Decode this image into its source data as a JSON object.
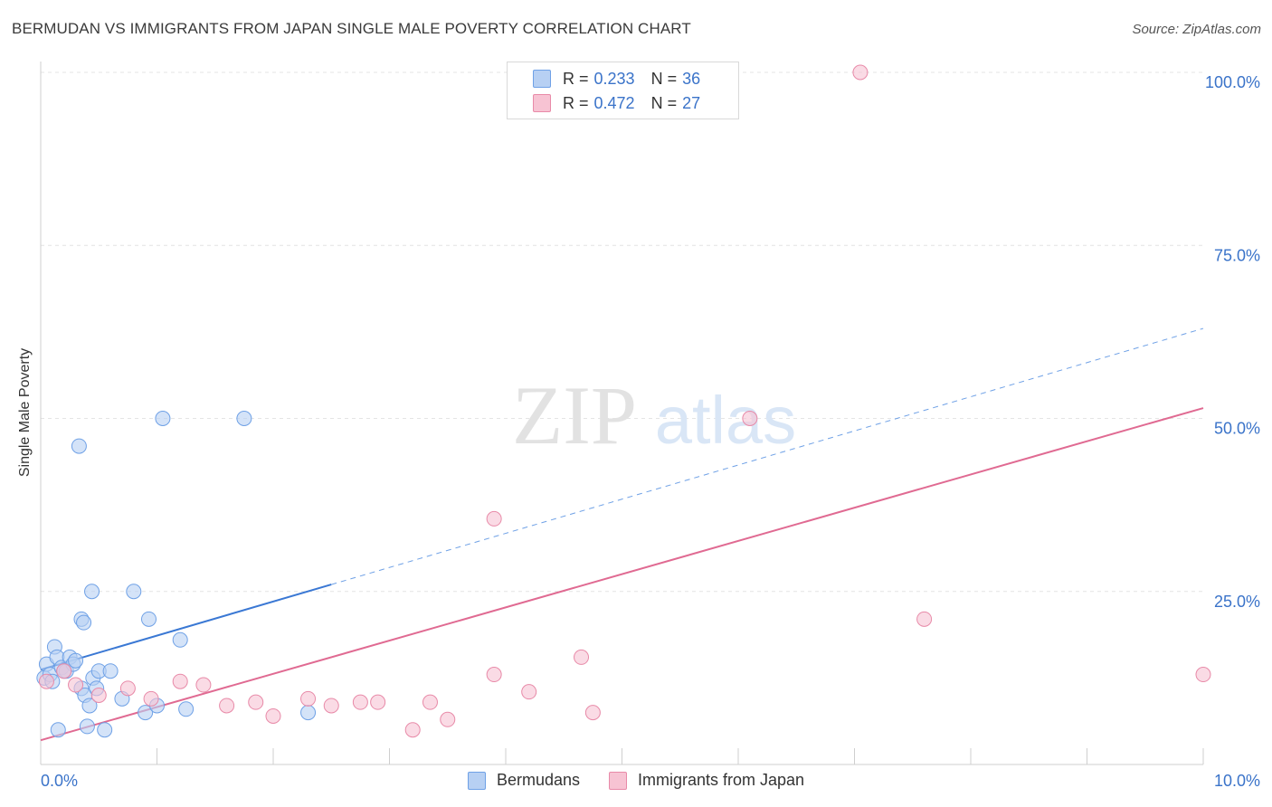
{
  "title": "BERMUDAN VS IMMIGRANTS FROM JAPAN SINGLE MALE POVERTY CORRELATION CHART",
  "source": "Source: ZipAtlas.com",
  "watermark": {
    "zip": "ZIP",
    "atlas": "atlas"
  },
  "legend": {
    "r_label": "R =",
    "n_label": "N =",
    "rows": [
      {
        "r": "0.233",
        "n": "36"
      },
      {
        "r": "0.472",
        "n": "27"
      }
    ]
  },
  "chart_data": {
    "type": "scatter",
    "ylabel": "Single Male Poverty",
    "xlim": [
      0,
      10
    ],
    "ylim": [
      0,
      100
    ],
    "x_tick_labels": [
      "0.0%",
      "10.0%"
    ],
    "y_tick_labels": [
      "100.0%",
      "75.0%",
      "50.0%",
      "25.0%"
    ],
    "y_tick_values": [
      100,
      75,
      50,
      25
    ],
    "series": [
      {
        "name": "Bermudans",
        "color": "#6fa1e6",
        "fill": "#b7d0f3",
        "points": [
          [
            0.03,
            12.5
          ],
          [
            0.05,
            14.5
          ],
          [
            0.08,
            13.0
          ],
          [
            0.12,
            17.0
          ],
          [
            0.14,
            15.5
          ],
          [
            0.18,
            14.0
          ],
          [
            0.22,
            13.5
          ],
          [
            0.25,
            15.5
          ],
          [
            0.28,
            14.5
          ],
          [
            0.3,
            15.0
          ],
          [
            0.35,
            11.0
          ],
          [
            0.38,
            10.0
          ],
          [
            0.4,
            5.5
          ],
          [
            0.33,
            46.0
          ],
          [
            0.35,
            21.0
          ],
          [
            0.37,
            20.5
          ],
          [
            0.42,
            8.5
          ],
          [
            0.45,
            12.5
          ],
          [
            0.44,
            25.0
          ],
          [
            0.48,
            11.0
          ],
          [
            0.5,
            13.5
          ],
          [
            0.6,
            13.5
          ],
          [
            0.7,
            9.5
          ],
          [
            0.8,
            25.0
          ],
          [
            0.93,
            21.0
          ],
          [
            0.9,
            7.5
          ],
          [
            1.0,
            8.5
          ],
          [
            1.05,
            50.0
          ],
          [
            1.2,
            18.0
          ],
          [
            1.25,
            8.0
          ],
          [
            1.75,
            50.0
          ],
          [
            2.3,
            7.5
          ],
          [
            0.55,
            5.0
          ],
          [
            0.15,
            5.0
          ],
          [
            0.2,
            13.5
          ],
          [
            0.1,
            12.0
          ]
        ],
        "trend": {
          "x": [
            0.0,
            2.5
          ],
          "y": [
            13.7,
            26.0
          ]
        },
        "trend_dashed": {
          "x": [
            2.5,
            10.0
          ],
          "y": [
            26.0,
            63.0
          ]
        }
      },
      {
        "name": "Immigrants from Japan",
        "color": "#e88aa8",
        "fill": "#f7c3d3",
        "points": [
          [
            0.05,
            12.0
          ],
          [
            0.2,
            13.5
          ],
          [
            0.3,
            11.5
          ],
          [
            0.5,
            10.0
          ],
          [
            0.75,
            11.0
          ],
          [
            0.95,
            9.5
          ],
          [
            1.2,
            12.0
          ],
          [
            1.4,
            11.5
          ],
          [
            1.6,
            8.5
          ],
          [
            1.85,
            9.0
          ],
          [
            2.0,
            7.0
          ],
          [
            2.3,
            9.5
          ],
          [
            2.5,
            8.5
          ],
          [
            2.75,
            9.0
          ],
          [
            2.9,
            9.0
          ],
          [
            3.2,
            5.0
          ],
          [
            3.35,
            9.0
          ],
          [
            3.5,
            6.5
          ],
          [
            3.9,
            13.0
          ],
          [
            3.9,
            35.5
          ],
          [
            4.2,
            10.5
          ],
          [
            4.65,
            15.5
          ],
          [
            4.75,
            7.5
          ],
          [
            6.1,
            50.0
          ],
          [
            7.05,
            100.0
          ],
          [
            7.6,
            21.0
          ],
          [
            10.0,
            13.0
          ]
        ],
        "trend": {
          "x": [
            0.0,
            10.0
          ],
          "y": [
            3.5,
            51.5
          ]
        }
      }
    ]
  }
}
